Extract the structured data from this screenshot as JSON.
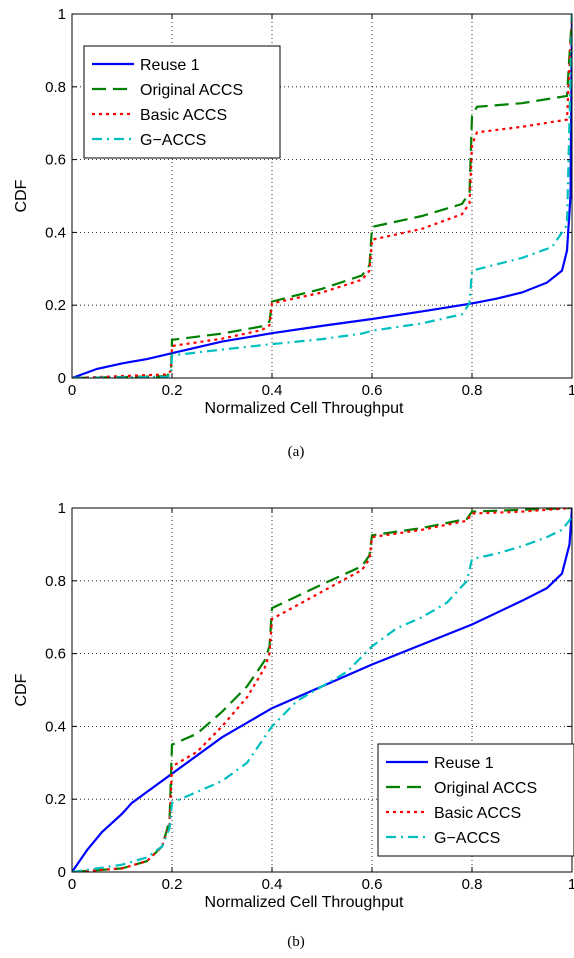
{
  "chart_data": [
    {
      "type": "line",
      "panel": "(a)",
      "xlabel": "Normalized Cell Throughput",
      "ylabel": "CDF",
      "xlim": [
        0,
        1
      ],
      "ylim": [
        0,
        1
      ],
      "xticks": [
        "0",
        "0.2",
        "0.4",
        "0.6",
        "0.8",
        "1"
      ],
      "yticks": [
        "0",
        "0.2",
        "0.4",
        "0.6",
        "0.8",
        "1"
      ],
      "grid": true,
      "legend_position": "top-left",
      "series": [
        {
          "name": "Reuse 1",
          "color": "#0000ff",
          "dash": "solid",
          "points": [
            [
              0,
              0
            ],
            [
              0.02,
              0.01
            ],
            [
              0.05,
              0.025
            ],
            [
              0.1,
              0.04
            ],
            [
              0.15,
              0.052
            ],
            [
              0.2,
              0.068
            ],
            [
              0.3,
              0.1
            ],
            [
              0.4,
              0.123
            ],
            [
              0.5,
              0.143
            ],
            [
              0.6,
              0.162
            ],
            [
              0.7,
              0.183
            ],
            [
              0.8,
              0.205
            ],
            [
              0.85,
              0.218
            ],
            [
              0.9,
              0.235
            ],
            [
              0.95,
              0.262
            ],
            [
              0.98,
              0.295
            ],
            [
              0.99,
              0.35
            ],
            [
              0.997,
              0.5
            ],
            [
              1,
              1
            ]
          ]
        },
        {
          "name": "Original ACCS",
          "color": "#008000",
          "dash": "dashed",
          "points": [
            [
              0,
              0
            ],
            [
              0.19,
              0.005
            ],
            [
              0.198,
              0.02
            ],
            [
              0.2,
              0.105
            ],
            [
              0.3,
              0.122
            ],
            [
              0.38,
              0.142
            ],
            [
              0.395,
              0.155
            ],
            [
              0.4,
              0.21
            ],
            [
              0.5,
              0.245
            ],
            [
              0.58,
              0.282
            ],
            [
              0.595,
              0.31
            ],
            [
              0.6,
              0.415
            ],
            [
              0.7,
              0.445
            ],
            [
              0.78,
              0.478
            ],
            [
              0.795,
              0.51
            ],
            [
              0.8,
              0.72
            ],
            [
              0.81,
              0.745
            ],
            [
              0.9,
              0.755
            ],
            [
              0.99,
              0.775
            ],
            [
              1,
              1
            ]
          ]
        },
        {
          "name": "Basic ACCS",
          "color": "#ff0000",
          "dash": "dotted",
          "points": [
            [
              0,
              0
            ],
            [
              0.19,
              0.01
            ],
            [
              0.198,
              0.02
            ],
            [
              0.2,
              0.088
            ],
            [
              0.3,
              0.108
            ],
            [
              0.38,
              0.132
            ],
            [
              0.395,
              0.145
            ],
            [
              0.4,
              0.205
            ],
            [
              0.5,
              0.235
            ],
            [
              0.58,
              0.27
            ],
            [
              0.595,
              0.295
            ],
            [
              0.6,
              0.38
            ],
            [
              0.7,
              0.41
            ],
            [
              0.78,
              0.45
            ],
            [
              0.795,
              0.48
            ],
            [
              0.8,
              0.64
            ],
            [
              0.81,
              0.675
            ],
            [
              0.9,
              0.69
            ],
            [
              0.99,
              0.71
            ],
            [
              1,
              1
            ]
          ]
        },
        {
          "name": "G−ACCS",
          "color": "#00bfbf",
          "dash": "dashdot",
          "points": [
            [
              0,
              0
            ],
            [
              0.19,
              0.003
            ],
            [
              0.198,
              0.01
            ],
            [
              0.2,
              0.062
            ],
            [
              0.3,
              0.078
            ],
            [
              0.4,
              0.093
            ],
            [
              0.5,
              0.107
            ],
            [
              0.58,
              0.122
            ],
            [
              0.6,
              0.13
            ],
            [
              0.7,
              0.15
            ],
            [
              0.78,
              0.175
            ],
            [
              0.795,
              0.205
            ],
            [
              0.8,
              0.295
            ],
            [
              0.9,
              0.33
            ],
            [
              0.96,
              0.36
            ],
            [
              0.99,
              0.42
            ],
            [
              1,
              1
            ]
          ]
        }
      ]
    },
    {
      "type": "line",
      "panel": "(b)",
      "xlabel": "Normalized Cell Throughput",
      "ylabel": "CDF",
      "xlim": [
        0,
        1
      ],
      "ylim": [
        0,
        1
      ],
      "xticks": [
        "0",
        "0.2",
        "0.4",
        "0.6",
        "0.8",
        "1"
      ],
      "yticks": [
        "0",
        "0.2",
        "0.4",
        "0.6",
        "0.8",
        "1"
      ],
      "grid": true,
      "legend_position": "bottom-right",
      "series": [
        {
          "name": "Reuse 1",
          "color": "#0000ff",
          "dash": "solid",
          "points": [
            [
              0,
              0
            ],
            [
              0.01,
              0.02
            ],
            [
              0.03,
              0.06
            ],
            [
              0.06,
              0.11
            ],
            [
              0.1,
              0.16
            ],
            [
              0.12,
              0.19
            ],
            [
              0.15,
              0.22
            ],
            [
              0.2,
              0.27
            ],
            [
              0.3,
              0.37
            ],
            [
              0.4,
              0.45
            ],
            [
              0.5,
              0.51
            ],
            [
              0.6,
              0.57
            ],
            [
              0.7,
              0.625
            ],
            [
              0.8,
              0.68
            ],
            [
              0.9,
              0.745
            ],
            [
              0.95,
              0.78
            ],
            [
              0.98,
              0.82
            ],
            [
              0.995,
              0.9
            ],
            [
              1,
              1
            ]
          ]
        },
        {
          "name": "Original ACCS",
          "color": "#008000",
          "dash": "dashed",
          "points": [
            [
              0,
              0
            ],
            [
              0.05,
              0.005
            ],
            [
              0.1,
              0.01
            ],
            [
              0.15,
              0.03
            ],
            [
              0.18,
              0.07
            ],
            [
              0.195,
              0.14
            ],
            [
              0.2,
              0.35
            ],
            [
              0.25,
              0.38
            ],
            [
              0.3,
              0.44
            ],
            [
              0.35,
              0.51
            ],
            [
              0.385,
              0.58
            ],
            [
              0.395,
              0.62
            ],
            [
              0.4,
              0.725
            ],
            [
              0.5,
              0.79
            ],
            [
              0.58,
              0.84
            ],
            [
              0.595,
              0.87
            ],
            [
              0.6,
              0.925
            ],
            [
              0.7,
              0.945
            ],
            [
              0.79,
              0.97
            ],
            [
              0.8,
              0.99
            ],
            [
              0.9,
              0.995
            ],
            [
              1,
              1
            ]
          ]
        },
        {
          "name": "Basic ACCS",
          "color": "#ff0000",
          "dash": "dotted",
          "points": [
            [
              0,
              0
            ],
            [
              0.05,
              0.005
            ],
            [
              0.1,
              0.01
            ],
            [
              0.15,
              0.03
            ],
            [
              0.18,
              0.07
            ],
            [
              0.195,
              0.13
            ],
            [
              0.2,
              0.29
            ],
            [
              0.25,
              0.33
            ],
            [
              0.3,
              0.4
            ],
            [
              0.35,
              0.48
            ],
            [
              0.385,
              0.56
            ],
            [
              0.395,
              0.6
            ],
            [
              0.4,
              0.695
            ],
            [
              0.5,
              0.77
            ],
            [
              0.58,
              0.83
            ],
            [
              0.595,
              0.86
            ],
            [
              0.6,
              0.92
            ],
            [
              0.7,
              0.94
            ],
            [
              0.79,
              0.965
            ],
            [
              0.8,
              0.985
            ],
            [
              0.9,
              0.99
            ],
            [
              1,
              1
            ]
          ]
        },
        {
          "name": "G−ACCS",
          "color": "#00bfbf",
          "dash": "dashdot",
          "points": [
            [
              0,
              0
            ],
            [
              0.05,
              0.01
            ],
            [
              0.1,
              0.02
            ],
            [
              0.15,
              0.04
            ],
            [
              0.18,
              0.07
            ],
            [
              0.195,
              0.12
            ],
            [
              0.2,
              0.19
            ],
            [
              0.25,
              0.22
            ],
            [
              0.3,
              0.25
            ],
            [
              0.35,
              0.3
            ],
            [
              0.4,
              0.4
            ],
            [
              0.45,
              0.47
            ],
            [
              0.5,
              0.51
            ],
            [
              0.55,
              0.55
            ],
            [
              0.6,
              0.62
            ],
            [
              0.65,
              0.67
            ],
            [
              0.7,
              0.7
            ],
            [
              0.75,
              0.74
            ],
            [
              0.79,
              0.8
            ],
            [
              0.8,
              0.86
            ],
            [
              0.85,
              0.875
            ],
            [
              0.9,
              0.895
            ],
            [
              0.95,
              0.92
            ],
            [
              0.98,
              0.94
            ],
            [
              1,
              0.975
            ]
          ]
        }
      ]
    }
  ]
}
